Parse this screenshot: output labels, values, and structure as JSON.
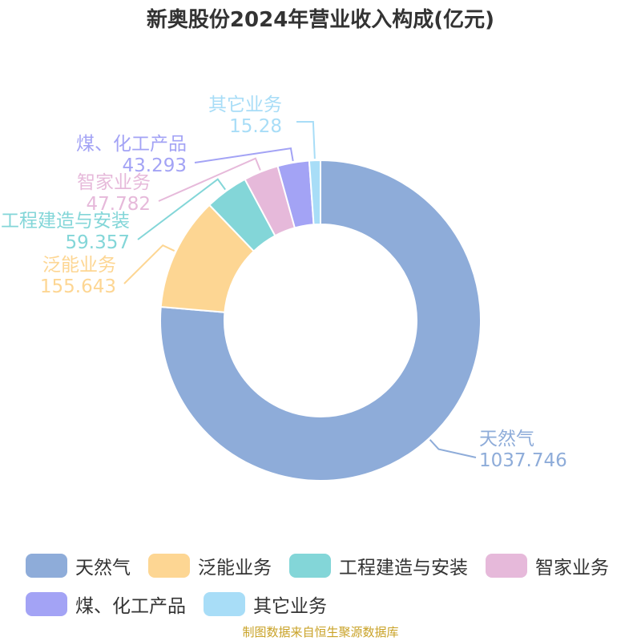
{
  "chart_data": {
    "type": "pie",
    "title": "新奥股份2024年营业收入构成(亿元)",
    "categories": [
      "天然气",
      "泛能业务",
      "工程建造与安装",
      "智家业务",
      "煤、化工产品",
      "其它业务"
    ],
    "values": [
      1037.746,
      155.643,
      59.357,
      47.782,
      43.293,
      15.28
    ],
    "value_labels": [
      "1037.746",
      "155.643",
      "59.357",
      "47.782",
      "43.293",
      "15.28"
    ],
    "colors": [
      "#8eacd9",
      "#fdd693",
      "#83d6d8",
      "#e6b9da",
      "#a3a3f5",
      "#a8ddf7"
    ],
    "donut": true,
    "legend_position": "bottom",
    "source": "制图数据来自恒生聚源数据库"
  }
}
